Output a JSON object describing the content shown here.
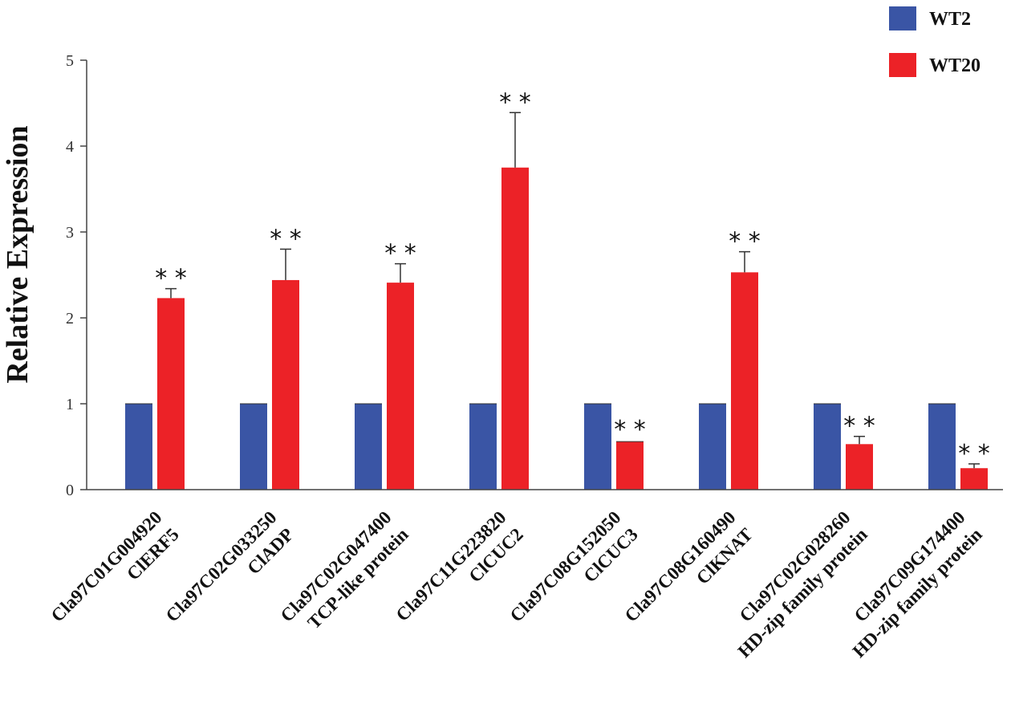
{
  "chart_data": {
    "type": "bar",
    "title": "",
    "xlabel": "",
    "ylabel": "Relative Expression",
    "ylim": [
      0,
      5
    ],
    "yticks": [
      0,
      1,
      2,
      3,
      4,
      5
    ],
    "grid": false,
    "legend_position": "top-right",
    "categories": [
      [
        "Cla97C01G004920",
        "ClERF5"
      ],
      [
        "Cla97C02G033250",
        "ClADP"
      ],
      [
        "Cla97C02G047400",
        "TCP-like protein"
      ],
      [
        "Cla97C11G223820",
        "ClCUC2"
      ],
      [
        "Cla97C08G152050",
        "ClCUC3"
      ],
      [
        "Cla97C08G160490",
        "ClKNAT"
      ],
      [
        "Cla97C02G028260",
        "HD-zip family protein"
      ],
      [
        "Cla97C09G174400",
        "HD-zip family protein"
      ]
    ],
    "series": [
      {
        "name": "WT2",
        "color": "#3a55a5",
        "values": [
          1,
          1,
          1,
          1,
          1,
          1,
          1,
          1
        ],
        "errors": [
          0.01,
          0.01,
          0.01,
          0.01,
          0.01,
          0.01,
          0.01,
          0.01
        ]
      },
      {
        "name": "WT20",
        "color": "#ec2227",
        "values": [
          2.23,
          2.44,
          2.41,
          3.75,
          0.56,
          2.53,
          0.53,
          0.25
        ],
        "errors": [
          0.11,
          0.36,
          0.22,
          0.64,
          0.02,
          0.24,
          0.09,
          0.05
        ]
      }
    ],
    "significance": [
      "* *",
      "* *",
      "* *",
      "* *",
      "* *",
      "* *",
      "* *",
      "* *"
    ]
  }
}
